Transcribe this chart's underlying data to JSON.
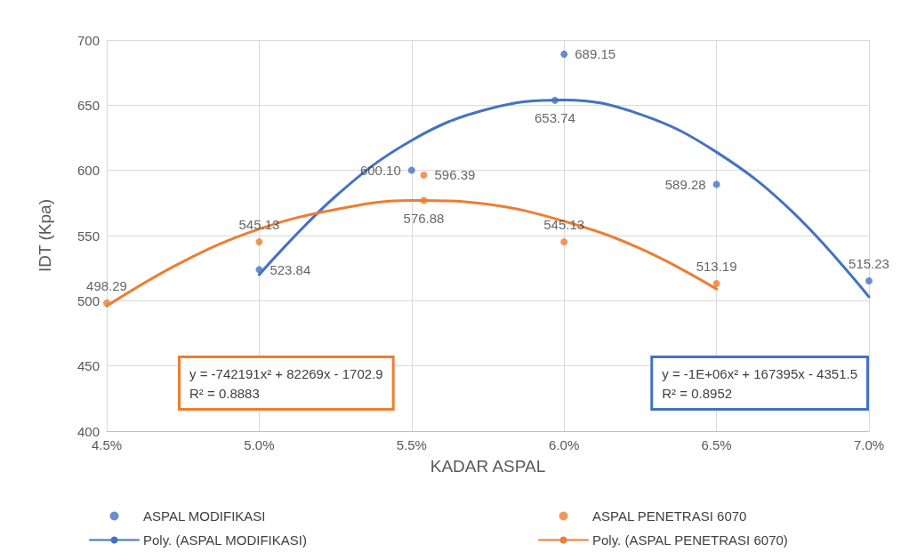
{
  "chart_data": {
    "type": "scatter",
    "xlabel": "KADAR ASPAL",
    "ylabel": "IDT (Kpa)",
    "xlim": [
      4.5,
      7.0
    ],
    "xticks": [
      {
        "value": 4.5,
        "label": "4.5%"
      },
      {
        "value": 5.0,
        "label": "5.0%"
      },
      {
        "value": 5.5,
        "label": "5.5%"
      },
      {
        "value": 6.0,
        "label": "6.0%"
      },
      {
        "value": 6.5,
        "label": "6.5%"
      },
      {
        "value": 7.0,
        "label": "7.0%"
      }
    ],
    "ylim": [
      400,
      700
    ],
    "yticks": [
      400,
      450,
      500,
      550,
      600,
      650,
      700
    ],
    "grid": true,
    "legend": "bottom",
    "series": [
      {
        "name": "ASPAL MODIFIKASI",
        "marker": "circle",
        "color": "#4472c4",
        "x": [
          5.0,
          5.5,
          5.97,
          6.0,
          6.5,
          7.0
        ],
        "values": [
          523.84,
          600.1,
          653.74,
          689.15,
          589.28,
          515.23
        ],
        "value_labels": [
          "523.84",
          "600.10",
          "653.74",
          "689.15",
          "589.28",
          "515.23"
        ]
      },
      {
        "name": "ASPAL PENETRASI 6070",
        "marker": "circle",
        "color": "#ed7d31",
        "x": [
          4.5,
          5.0,
          5.54,
          5.54,
          6.0,
          6.5
        ],
        "values": [
          498.29,
          545.13,
          596.39,
          576.88,
          545.13,
          513.19
        ],
        "value_labels": [
          "498.29",
          "545.13",
          "596.39",
          "576.88",
          "545.13",
          "513.19"
        ]
      },
      {
        "name": "Poly. (ASPAL MODIFIKASI)",
        "type": "line",
        "marker": "none",
        "color": "#4472c4",
        "line_style": "solid",
        "x": [
          5.0,
          5.25,
          5.5,
          5.75,
          6.0,
          6.25,
          6.5,
          6.75,
          7.0
        ],
        "values": [
          520,
          580,
          623,
          647,
          654,
          643,
          614,
          568,
          503
        ]
      },
      {
        "name": "Poly. (ASPAL PENETRASI 6070)",
        "type": "line",
        "marker": "none",
        "color": "#ed7d31",
        "line_style": "solid",
        "x": [
          4.5,
          4.75,
          5.0,
          5.25,
          5.5,
          5.75,
          6.0,
          6.25,
          6.5
        ],
        "values": [
          496,
          530,
          555,
          570,
          577,
          574,
          561,
          540,
          509
        ]
      }
    ],
    "annotations": [
      "y = -1E+06x² + 167395x - 4351.5\nR² = 0.8952",
      "y = -742191x² + 82269x - 1702.9\nR² = 0.8883"
    ]
  }
}
